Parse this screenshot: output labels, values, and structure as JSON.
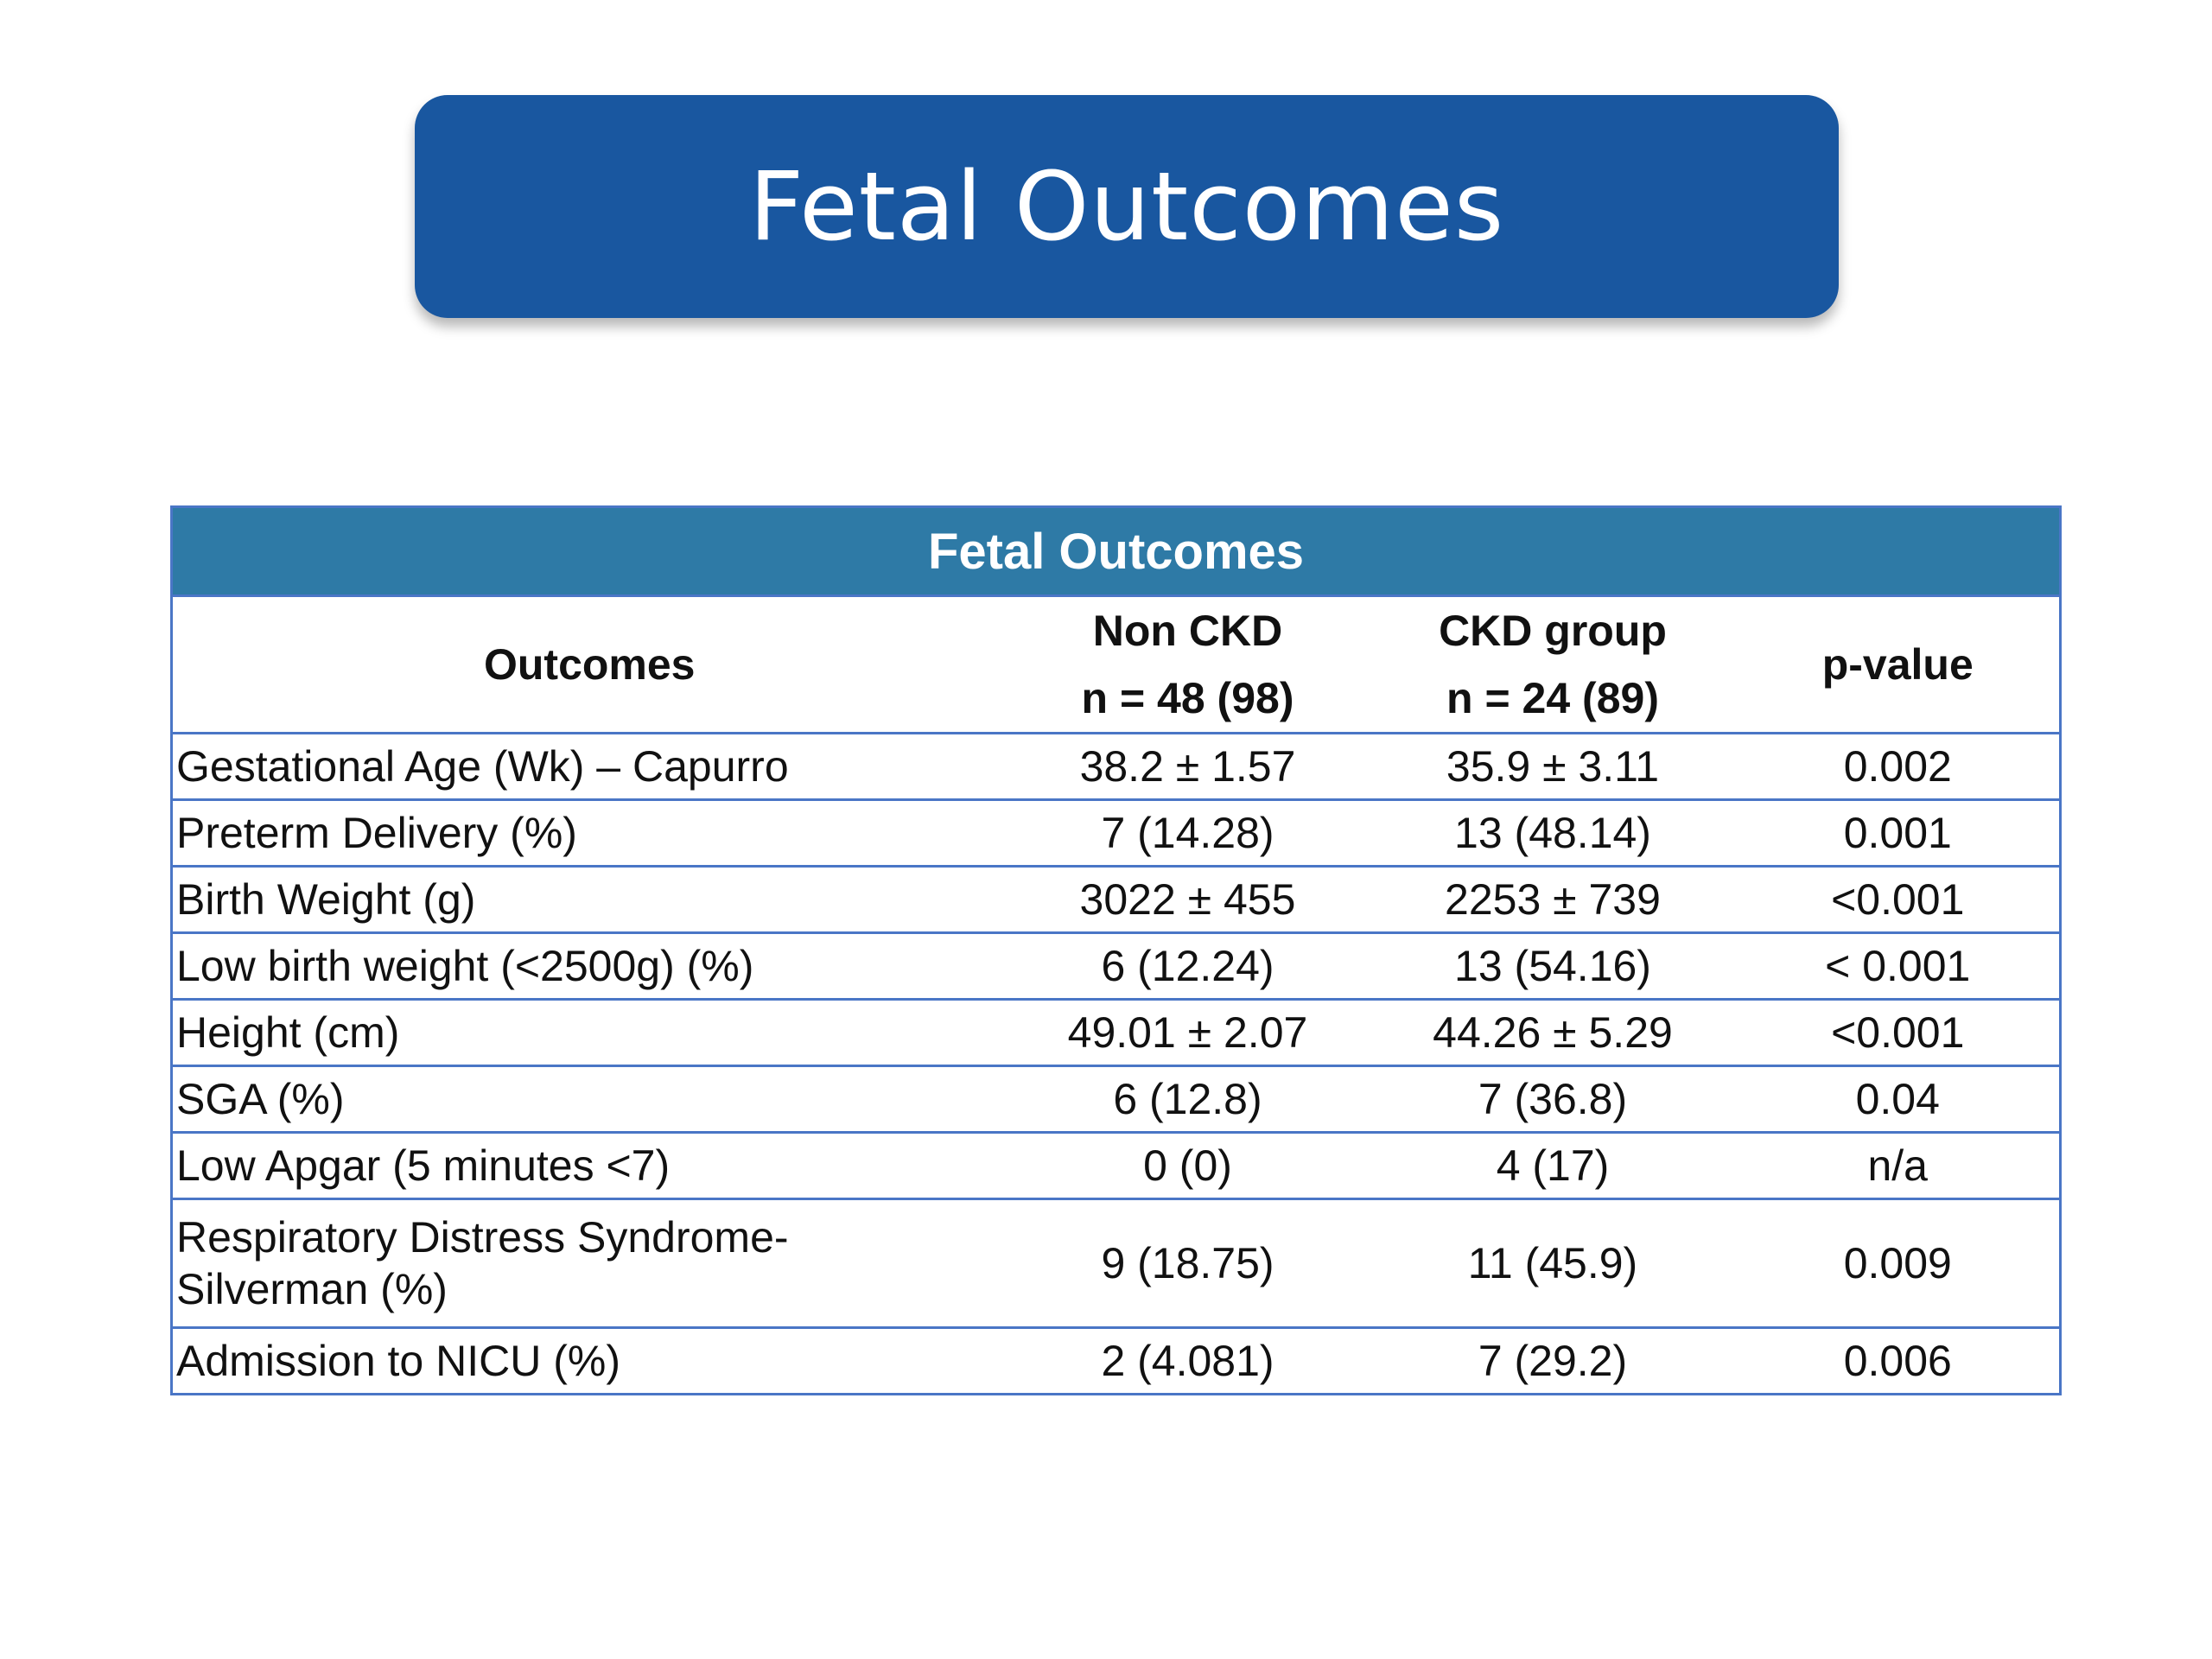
{
  "slide": {
    "title": "Fetal Outcomes",
    "accent_color": "#1957a0"
  },
  "table": {
    "banner": "Fetal Outcomes",
    "banner_color": "#2e7aa6",
    "border_color": "#4a76c6",
    "headers": {
      "outcomes": "Outcomes",
      "non_ckd_line1": "Non CKD",
      "non_ckd_line2": "n = 48 (98)",
      "ckd_line1": "CKD group",
      "ckd_line2": "n = 24 (89)",
      "p_value": "p-value"
    },
    "rows": [
      {
        "label": "Gestational Age (Wk) – Capurro",
        "non_ckd": "38.2 ± 1.57",
        "ckd": "35.9 ± 3.11",
        "p": "0.002"
      },
      {
        "label": "Preterm Delivery  (%)",
        "non_ckd": "7 (14.28)",
        "ckd": "13 (48.14)",
        "p": "0.001"
      },
      {
        "label": "Birth Weight (g)",
        "non_ckd": "3022 ± 455",
        "ckd": "2253 ± 739",
        "p": "<0.001"
      },
      {
        "label": "Low birth weight (<2500g) (%)",
        "non_ckd": "6 (12.24)",
        "ckd": "13 (54.16)",
        "p": "< 0.001"
      },
      {
        "label": "Height (cm)",
        "non_ckd": "49.01 ± 2.07",
        "ckd": "44.26 ± 5.29",
        "p": "<0.001"
      },
      {
        "label": "SGA (%)",
        "non_ckd": "6 (12.8)",
        "ckd": "7 (36.8)",
        "p": "0.04"
      },
      {
        "label": "Low Apgar  (5 minutes <7)",
        "non_ckd": "0 (0)",
        "ckd": "4 (17)",
        "p": "n/a"
      },
      {
        "label_line1": "Respiratory Distress Syndrome-",
        "label_line2": "Silverman  (%)",
        "non_ckd": "9 (18.75)",
        "ckd": "11 (45.9)",
        "p": "0.009"
      },
      {
        "label": "Admission to NICU (%)",
        "non_ckd": "2 (4.081)",
        "ckd": "7 (29.2)",
        "p": "0.006"
      }
    ]
  }
}
